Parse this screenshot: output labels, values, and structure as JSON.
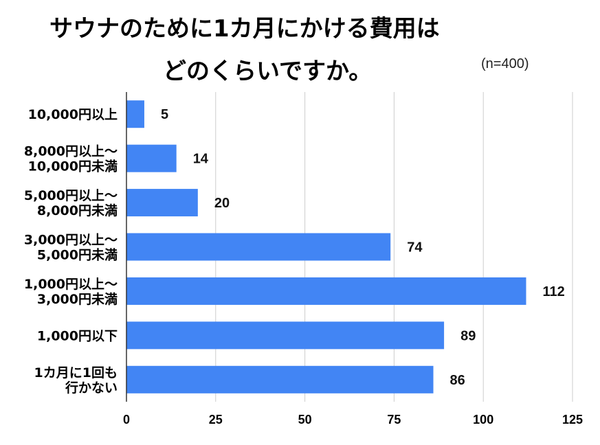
{
  "chart_data": {
    "type": "bar",
    "orientation": "horizontal",
    "title_lines": [
      "サウナのために1カ月にかける費用は",
      "どのくらいですか。"
    ],
    "sample_size": "(n=400)",
    "categories": [
      [
        "10,000円以上"
      ],
      [
        "8,000円以上～",
        "10,000円未満"
      ],
      [
        "5,000円以上～",
        "8,000円未満"
      ],
      [
        "3,000円以上～",
        "5,000円未満"
      ],
      [
        "1,000円以上～",
        "3,000円未満"
      ],
      [
        "1,000円以下"
      ],
      [
        "1カ月に1回も",
        "行かない"
      ]
    ],
    "values": [
      5,
      14,
      20,
      74,
      112,
      89,
      86
    ],
    "xlim": [
      0,
      125
    ],
    "xticks": [
      0,
      25,
      50,
      75,
      100,
      125
    ],
    "grid": true,
    "bar_color": "#4285f4",
    "grid_color": "#cccccc"
  }
}
